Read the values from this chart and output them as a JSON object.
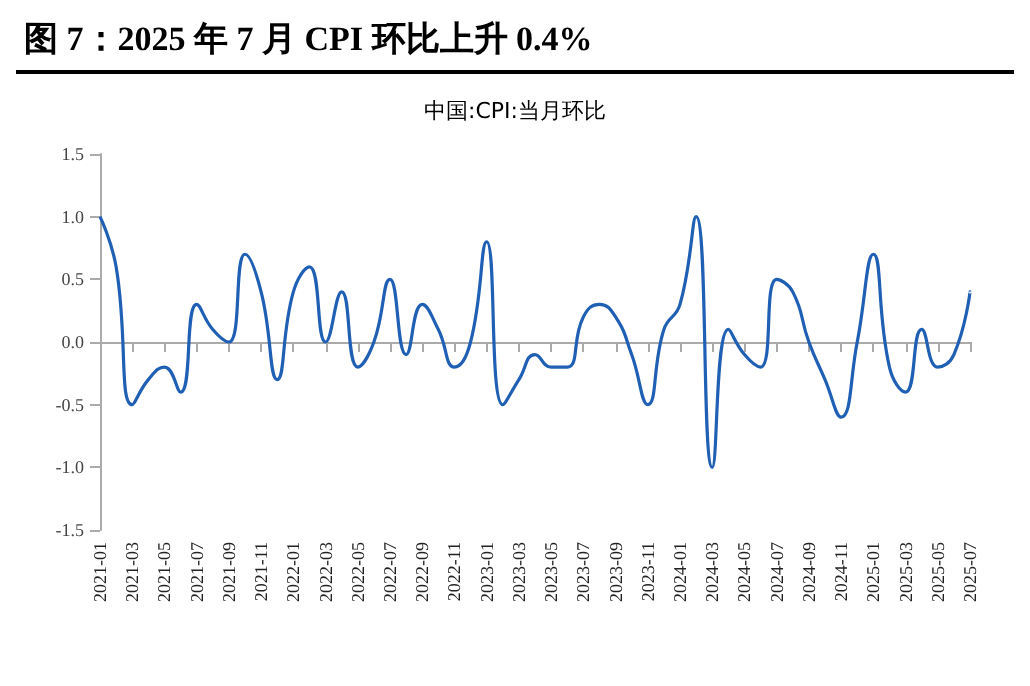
{
  "chart_data": {
    "type": "line",
    "title": "图 7：2025 年 7 月 CPI 环比上升 0.4%",
    "subtitle": "中国:CPI:当月环比",
    "categories": [
      "2021-01",
      null,
      "2021-03",
      null,
      "2021-05",
      null,
      "2021-07",
      null,
      "2021-09",
      null,
      "2021-11",
      null,
      "2022-01",
      null,
      "2022-03",
      null,
      "2022-05",
      null,
      "2022-07",
      null,
      "2022-09",
      null,
      "2022-11",
      null,
      "2023-01",
      null,
      "2023-03",
      null,
      "2023-05",
      null,
      "2023-07",
      null,
      "2023-09",
      null,
      "2023-11",
      null,
      "2024-01",
      null,
      "2024-03",
      null,
      "2024-05",
      null,
      "2024-07",
      null,
      "2024-09",
      null,
      "2024-11",
      null,
      "2025-01",
      null,
      "2025-03",
      null,
      "2025-05",
      null,
      "2025-07"
    ],
    "series": [
      {
        "color": "#1f5fb4",
        "values": [
          1.0,
          0.6,
          -0.5,
          -0.3,
          -0.2,
          -0.4,
          0.3,
          0.1,
          0.0,
          0.7,
          0.4,
          -0.3,
          0.4,
          0.6,
          0.0,
          0.4,
          -0.2,
          0.0,
          0.5,
          -0.1,
          0.3,
          0.1,
          -0.2,
          0.0,
          0.8,
          -0.5,
          -0.3,
          -0.1,
          -0.2,
          -0.2,
          0.2,
          0.3,
          0.2,
          -0.1,
          -0.5,
          0.1,
          0.3,
          1.0,
          -1.0,
          0.1,
          -0.1,
          -0.2,
          0.5,
          0.4,
          0.0,
          -0.3,
          -0.6,
          0.0,
          0.7,
          -0.2,
          -0.4,
          0.1,
          -0.2,
          -0.1,
          0.4
        ]
      }
    ],
    "ylim": [
      -1.5,
      1.5
    ],
    "yticks": [
      {
        "value": -1.5,
        "label": "-1.5"
      },
      {
        "value": -1,
        "label": "-1.0"
      },
      {
        "value": -0.5,
        "label": "-0.5"
      },
      {
        "value": 0,
        "label": "0.0"
      },
      {
        "value": 0.5,
        "label": "0.5"
      },
      {
        "value": 1,
        "label": "1.0"
      },
      {
        "value": 1.5,
        "label": "1.5"
      }
    ],
    "marker": "none",
    "line_style": "solid"
  }
}
